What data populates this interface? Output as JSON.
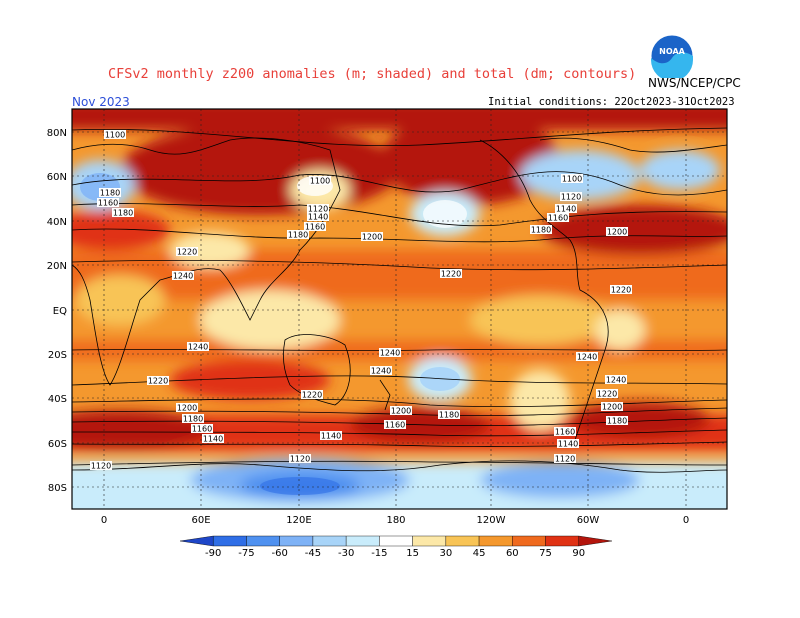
{
  "header": {
    "title": "CFSv2 monthly z200 anomalies (m; shaded) and total (dm; contours)",
    "month": "Nov 2023",
    "org": "NWS/NCEP/CPC",
    "init": "Initial conditions: 22Oct2023-31Oct2023",
    "logo_text": "NOAA"
  },
  "colors": {
    "neg90": "#1e46c8",
    "neg75": "#2f6ee6",
    "neg60": "#4f91f0",
    "neg45": "#7eb2f6",
    "neg30": "#a8d4f8",
    "neg15": "#c9ecfb",
    "zero": "#ffffff",
    "pos15": "#fce8a8",
    "pos30": "#f8c456",
    "pos45": "#f4982e",
    "pos60": "#ef6a1e",
    "pos75": "#e03214",
    "pos90": "#b4150c",
    "title": "#e8403a",
    "month": "#2d4fd8"
  },
  "map_data": {
    "lat_ticks": [
      "80N",
      "60N",
      "40N",
      "20N",
      "EQ",
      "20S",
      "40S",
      "60S",
      "80S"
    ],
    "lon_ticks": [
      "0",
      "60E",
      "120E",
      "180",
      "120W",
      "60W",
      "0"
    ],
    "contour_labels": [
      "1120",
      "1180",
      "1160",
      "1180",
      "1220",
      "1240",
      "1240",
      "1220",
      "1200",
      "1180",
      "1160",
      "1140",
      "1120",
      "1100",
      "1120",
      "1140",
      "1160",
      "1180",
      "1200",
      "1220",
      "1240",
      "1240",
      "1220",
      "1200",
      "1180",
      "1160",
      "1140",
      "1120",
      "1100",
      "1120",
      "1140",
      "1160",
      "1180",
      "1200",
      "1220",
      "1240",
      "1240",
      "1220",
      "1200",
      "1180",
      "1160",
      "1140",
      "1120",
      "1100"
    ]
  },
  "legend": {
    "ticks": [
      "-90",
      "-75",
      "-60",
      "-45",
      "-30",
      "-15",
      "15",
      "30",
      "45",
      "60",
      "75",
      "90"
    ],
    "colors": [
      "#1e46c8",
      "#2f6ee6",
      "#4f91f0",
      "#7eb2f6",
      "#a8d4f8",
      "#c9ecfb",
      "#ffffff",
      "#fce8a8",
      "#f8c456",
      "#f4982e",
      "#ef6a1e",
      "#e03214",
      "#b4150c"
    ]
  }
}
